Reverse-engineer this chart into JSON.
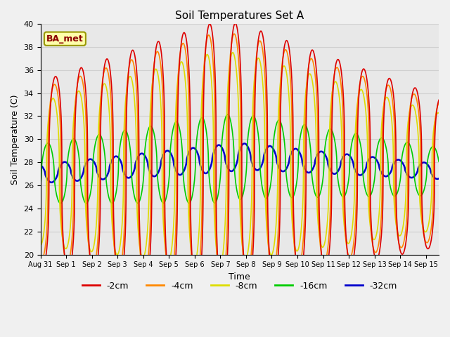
{
  "title": "Soil Temperatures Set A",
  "xlabel": "Time",
  "ylabel": "Soil Temperature (C)",
  "ylim": [
    20,
    40
  ],
  "annotation": "BA_met",
  "bg_color": "#e8e8e8",
  "fig_bg": "#f0f0f0",
  "series_order": [
    "-32cm",
    "-16cm",
    "-8cm",
    "-4cm",
    "-2cm"
  ],
  "series": {
    "-2cm": {
      "color": "#dd0000",
      "lw": 1.2
    },
    "-4cm": {
      "color": "#ff8800",
      "lw": 1.2
    },
    "-8cm": {
      "color": "#dddd00",
      "lw": 1.2
    },
    "-16cm": {
      "color": "#00cc00",
      "lw": 1.2
    },
    "-32cm": {
      "color": "#0000cc",
      "lw": 1.8
    }
  },
  "xtick_labels": [
    "Aug 31",
    "Sep 1",
    "Sep 2",
    "Sep 3",
    "Sep 4",
    "Sep 5",
    "Sep 6",
    "Sep 7",
    "Sep 8",
    "Sep 9",
    "Sep 10",
    "Sep 11",
    "Sep 12",
    "Sep 13",
    "Sep 14",
    "Sep 15"
  ],
  "ytick_positions": [
    20,
    22,
    24,
    26,
    28,
    30,
    32,
    34,
    36,
    38,
    40
  ],
  "grid_color": "#d0d0d0",
  "legend_labels": [
    "-2cm",
    "-4cm",
    "-8cm",
    "-16cm",
    "-32cm"
  ],
  "legend_colors": [
    "#dd0000",
    "#ff8800",
    "#dddd00",
    "#00cc00",
    "#0000cc"
  ]
}
